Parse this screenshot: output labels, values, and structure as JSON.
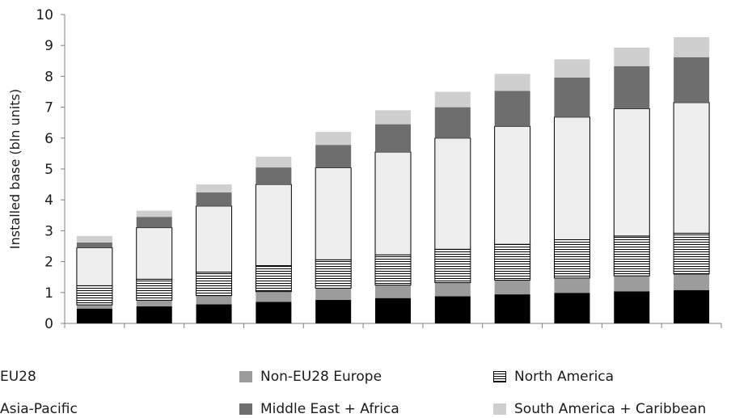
{
  "chart_data": {
    "type": "bar",
    "stacked": true,
    "ylabel": "Installed base (bln units)",
    "ylim": [
      0,
      10
    ],
    "yticks": [
      0,
      1,
      2,
      3,
      4,
      5,
      6,
      7,
      8,
      9,
      10
    ],
    "categories": [
      "",
      "",
      "",
      "",
      "",
      "",
      "",
      "",
      "",
      "",
      ""
    ],
    "grid": false,
    "legend_position": "bottom",
    "series": [
      {
        "name": "EU28",
        "color": "#000000",
        "values": [
          0.48,
          0.55,
          0.62,
          0.7,
          0.76,
          0.82,
          0.88,
          0.94,
          0.99,
          1.04,
          1.08
        ]
      },
      {
        "name": "Non-EU28 Europe",
        "color": "#9c9c9c",
        "values": [
          0.12,
          0.2,
          0.28,
          0.33,
          0.38,
          0.42,
          0.44,
          0.46,
          0.48,
          0.5,
          0.52
        ]
      },
      {
        "name": "North America",
        "color": "#ffffff",
        "pattern": "horizontal-lines",
        "values": [
          0.62,
          0.68,
          0.76,
          0.84,
          0.92,
          0.98,
          1.08,
          1.16,
          1.24,
          1.29,
          1.32
        ]
      },
      {
        "name": "Asia-Pacific",
        "color": "#eeeeee",
        "values": [
          1.23,
          1.67,
          2.14,
          2.63,
          2.98,
          3.33,
          3.6,
          3.82,
          3.97,
          4.12,
          4.23
        ]
      },
      {
        "name": "Middle East + Africa",
        "color": "#6e6e6e",
        "values": [
          0.17,
          0.35,
          0.44,
          0.55,
          0.74,
          0.9,
          1.0,
          1.15,
          1.28,
          1.38,
          1.47
        ]
      },
      {
        "name": "South America + Caribbean",
        "color": "#cfcfcf",
        "values": [
          0.21,
          0.2,
          0.26,
          0.35,
          0.42,
          0.45,
          0.5,
          0.55,
          0.59,
          0.6,
          0.65
        ]
      }
    ]
  },
  "legend": {
    "eu28": "EU28",
    "non_eu28": "Non-EU28 Europe",
    "north_america": "North America",
    "asia_pacific": "Asia-Pacific",
    "mea": "Middle East + Africa",
    "south_america": "South America + Caribbean"
  }
}
